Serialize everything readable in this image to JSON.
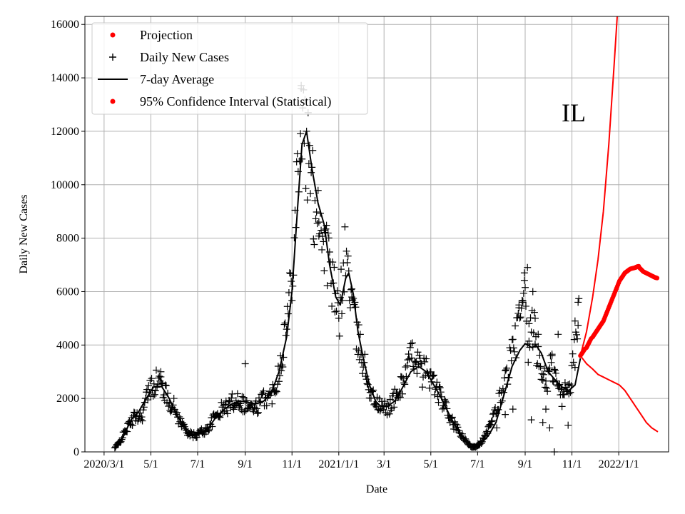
{
  "chart_data": {
    "type": "line",
    "xlabel": "Date",
    "ylabel": "Daily New Cases",
    "annotation": "IL",
    "ylim": [
      0,
      16300
    ],
    "xlim": [
      "2020-02-05",
      "2022-03-07"
    ],
    "x_ticks": [
      {
        "date": "2020-03-01",
        "label": "2020/3/1"
      },
      {
        "date": "2020-05-01",
        "label": "5/1"
      },
      {
        "date": "2020-07-01",
        "label": "7/1"
      },
      {
        "date": "2020-09-01",
        "label": "9/1"
      },
      {
        "date": "2020-11-01",
        "label": "11/1"
      },
      {
        "date": "2021-01-01",
        "label": "2021/1/1"
      },
      {
        "date": "2021-03-01",
        "label": "3/1"
      },
      {
        "date": "2021-05-01",
        "label": "5/1"
      },
      {
        "date": "2021-07-01",
        "label": "7/1"
      },
      {
        "date": "2021-09-01",
        "label": "9/1"
      },
      {
        "date": "2021-11-01",
        "label": "11/1"
      },
      {
        "date": "2022-01-01",
        "label": "2022/1/1"
      }
    ],
    "y_ticks": [
      0,
      2000,
      4000,
      6000,
      8000,
      10000,
      12000,
      14000,
      16000
    ],
    "grid": true,
    "legend_placement": "top-left",
    "legend": [
      {
        "label": "Projection",
        "marker": "dot",
        "color": "#ff0000"
      },
      {
        "label": "Daily New Cases",
        "marker": "plus",
        "color": "#000000"
      },
      {
        "label": "7-day Average",
        "marker": "line",
        "color": "#000000"
      },
      {
        "label": "95% Confidence Interval (Statistical)",
        "marker": "dot",
        "color": "#ff0000"
      }
    ],
    "series": [
      {
        "name": "7-day Average",
        "color": "#000000",
        "points": [
          [
            "2020-03-15",
            100
          ],
          [
            "2020-03-25",
            500
          ],
          [
            "2020-04-05",
            1200
          ],
          [
            "2020-04-15",
            1500
          ],
          [
            "2020-04-25",
            2000
          ],
          [
            "2020-05-05",
            2450
          ],
          [
            "2020-05-15",
            2450
          ],
          [
            "2020-05-25",
            2000
          ],
          [
            "2020-06-05",
            1300
          ],
          [
            "2020-06-15",
            900
          ],
          [
            "2020-06-25",
            650
          ],
          [
            "2020-07-05",
            700
          ],
          [
            "2020-07-15",
            900
          ],
          [
            "2020-07-25",
            1300
          ],
          [
            "2020-08-05",
            1600
          ],
          [
            "2020-08-15",
            1800
          ],
          [
            "2020-08-25",
            1900
          ],
          [
            "2020-09-05",
            1850
          ],
          [
            "2020-09-15",
            1800
          ],
          [
            "2020-09-25",
            1900
          ],
          [
            "2020-10-05",
            2200
          ],
          [
            "2020-10-15",
            3000
          ],
          [
            "2020-10-25",
            4300
          ],
          [
            "2020-11-01",
            6000
          ],
          [
            "2020-11-08",
            9000
          ],
          [
            "2020-11-14",
            11500
          ],
          [
            "2020-11-20",
            12000
          ],
          [
            "2020-11-27",
            10600
          ],
          [
            "2020-12-05",
            9300
          ],
          [
            "2020-12-13",
            8500
          ],
          [
            "2020-12-20",
            7000
          ],
          [
            "2020-12-28",
            5800
          ],
          [
            "2021-01-03",
            5500
          ],
          [
            "2021-01-10",
            6500
          ],
          [
            "2021-01-14",
            6700
          ],
          [
            "2021-01-20",
            5900
          ],
          [
            "2021-01-26",
            4500
          ],
          [
            "2021-02-02",
            3500
          ],
          [
            "2021-02-10",
            2500
          ],
          [
            "2021-02-18",
            1900
          ],
          [
            "2021-02-25",
            1700
          ],
          [
            "2021-03-05",
            1700
          ],
          [
            "2021-03-15",
            1900
          ],
          [
            "2021-03-25",
            2400
          ],
          [
            "2021-04-05",
            3000
          ],
          [
            "2021-04-15",
            3200
          ],
          [
            "2021-04-25",
            3000
          ],
          [
            "2021-05-05",
            2500
          ],
          [
            "2021-05-15",
            2000
          ],
          [
            "2021-05-25",
            1400
          ],
          [
            "2021-06-05",
            800
          ],
          [
            "2021-06-15",
            400
          ],
          [
            "2021-06-25",
            250
          ],
          [
            "2021-07-05",
            300
          ],
          [
            "2021-07-15",
            600
          ],
          [
            "2021-07-25",
            1100
          ],
          [
            "2021-08-05",
            2200
          ],
          [
            "2021-08-15",
            3200
          ],
          [
            "2021-08-25",
            3800
          ],
          [
            "2021-09-01",
            4050
          ],
          [
            "2021-09-10",
            3900
          ],
          [
            "2021-09-15",
            4000
          ],
          [
            "2021-09-22",
            3700
          ],
          [
            "2021-10-01",
            3000
          ],
          [
            "2021-10-10",
            2700
          ],
          [
            "2021-10-20",
            2400
          ],
          [
            "2021-10-28",
            2300
          ],
          [
            "2021-11-05",
            2500
          ],
          [
            "2021-11-12",
            3500
          ]
        ]
      },
      {
        "name": "Projection",
        "color": "#ff0000",
        "points": [
          [
            "2021-11-12",
            3600
          ],
          [
            "2021-11-20",
            3900
          ],
          [
            "2021-11-28",
            4300
          ],
          [
            "2021-12-05",
            4600
          ],
          [
            "2021-12-12",
            4900
          ],
          [
            "2021-12-19",
            5400
          ],
          [
            "2021-12-26",
            5900
          ],
          [
            "2022-01-02",
            6400
          ],
          [
            "2022-01-09",
            6700
          ],
          [
            "2022-01-16",
            6850
          ],
          [
            "2022-01-23",
            6900
          ],
          [
            "2022-01-27",
            6950
          ],
          [
            "2022-02-02",
            6750
          ],
          [
            "2022-02-09",
            6650
          ],
          [
            "2022-02-16",
            6550
          ],
          [
            "2022-02-21",
            6500
          ]
        ]
      },
      {
        "name": "95% Confidence Interval (Statistical)",
        "color": "#ff0000",
        "bound": "upper",
        "points": [
          [
            "2021-11-12",
            3600
          ],
          [
            "2021-11-20",
            4500
          ],
          [
            "2021-11-28",
            5800
          ],
          [
            "2021-12-05",
            7200
          ],
          [
            "2021-12-12",
            9000
          ],
          [
            "2021-12-19",
            11500
          ],
          [
            "2021-12-26",
            14500
          ],
          [
            "2021-12-30",
            16300
          ]
        ]
      },
      {
        "name": "95% Confidence Interval (Statistical)",
        "color": "#ff0000",
        "bound": "lower",
        "points": [
          [
            "2021-11-12",
            3600
          ],
          [
            "2021-11-20",
            3300
          ],
          [
            "2021-11-28",
            3100
          ],
          [
            "2021-12-05",
            2900
          ],
          [
            "2021-12-12",
            2800
          ],
          [
            "2021-12-19",
            2700
          ],
          [
            "2021-12-26",
            2600
          ],
          [
            "2022-01-02",
            2500
          ],
          [
            "2022-01-09",
            2300
          ],
          [
            "2022-01-16",
            2000
          ],
          [
            "2022-01-23",
            1700
          ],
          [
            "2022-01-30",
            1400
          ],
          [
            "2022-02-06",
            1100
          ],
          [
            "2022-02-13",
            900
          ],
          [
            "2022-02-21",
            750
          ]
        ]
      }
    ],
    "scatter_envelope": {
      "name": "Daily New Cases",
      "points": [
        [
          "2020-03-15",
          150
        ],
        [
          "2020-03-22",
          400
        ],
        [
          "2020-03-29",
          800
        ],
        [
          "2020-04-05",
          1100
        ],
        [
          "2020-04-12",
          1400
        ],
        [
          "2020-04-19",
          1300
        ],
        [
          "2020-04-26",
          2100
        ],
        [
          "2020-05-03",
          2500
        ],
        [
          "2020-05-10",
          2700
        ],
        [
          "2020-05-17",
          2400
        ],
        [
          "2020-05-24",
          1900
        ],
        [
          "2020-05-31",
          1700
        ],
        [
          "2020-06-07",
          1200
        ],
        [
          "2020-06-14",
          900
        ],
        [
          "2020-06-21",
          650
        ],
        [
          "2020-06-28",
          600
        ],
        [
          "2020-07-05",
          750
        ],
        [
          "2020-07-12",
          800
        ],
        [
          "2020-07-19",
          1100
        ],
        [
          "2020-07-26",
          1400
        ],
        [
          "2020-08-02",
          1600
        ],
        [
          "2020-08-09",
          1700
        ],
        [
          "2020-08-16",
          1900
        ],
        [
          "2020-08-23",
          2000
        ],
        [
          "2020-08-30",
          1800
        ],
        [
          "2020-09-06",
          1700
        ],
        [
          "2020-09-13",
          1600
        ],
        [
          "2020-09-20",
          1800
        ],
        [
          "2020-09-27",
          2100
        ],
        [
          "2020-10-04",
          2000
        ],
        [
          "2020-10-11",
          2600
        ],
        [
          "2020-10-18",
          3500
        ],
        [
          "2020-10-25",
          4800
        ],
        [
          "2020-11-01",
          6900
        ],
        [
          "2020-11-06",
          9500
        ],
        [
          "2020-11-10",
          11400
        ],
        [
          "2020-11-13",
          12700
        ],
        [
          "2020-11-17",
          11800
        ],
        [
          "2020-11-21",
          11000
        ],
        [
          "2020-11-25",
          10400
        ],
        [
          "2020-11-30",
          9200
        ],
        [
          "2020-12-04",
          9600
        ],
        [
          "2020-12-08",
          8700
        ],
        [
          "2020-12-12",
          8000
        ],
        [
          "2020-12-16",
          7600
        ],
        [
          "2020-12-20",
          6900
        ],
        [
          "2020-12-24",
          6200
        ],
        [
          "2020-12-28",
          5600
        ],
        [
          "2021-01-01",
          4800
        ],
        [
          "2021-01-05",
          6200
        ],
        [
          "2021-01-09",
          7300
        ],
        [
          "2021-01-13",
          6900
        ],
        [
          "2021-01-17",
          5800
        ],
        [
          "2021-01-21",
          5100
        ],
        [
          "2021-01-25",
          4200
        ],
        [
          "2021-01-29",
          3900
        ],
        [
          "2021-02-03",
          3300
        ],
        [
          "2021-02-08",
          2600
        ],
        [
          "2021-02-13",
          2100
        ],
        [
          "2021-02-18",
          1900
        ],
        [
          "2021-02-23",
          1700
        ],
        [
          "2021-02-28",
          1650
        ],
        [
          "2021-03-05",
          1600
        ],
        [
          "2021-03-10",
          1800
        ],
        [
          "2021-03-15",
          2000
        ],
        [
          "2021-03-20",
          2200
        ],
        [
          "2021-03-25",
          2600
        ],
        [
          "2021-03-30",
          3000
        ],
        [
          "2021-04-04",
          3400
        ],
        [
          "2021-04-09",
          3700
        ],
        [
          "2021-04-14",
          3400
        ],
        [
          "2021-04-19",
          2900
        ],
        [
          "2021-04-24",
          3100
        ],
        [
          "2021-04-29",
          2900
        ],
        [
          "2021-05-04",
          2600
        ],
        [
          "2021-05-09",
          2300
        ],
        [
          "2021-05-14",
          2000
        ],
        [
          "2021-05-19",
          1700
        ],
        [
          "2021-05-24",
          1400
        ],
        [
          "2021-05-29",
          1100
        ],
        [
          "2021-06-03",
          900
        ],
        [
          "2021-06-08",
          700
        ],
        [
          "2021-06-13",
          500
        ],
        [
          "2021-06-18",
          300
        ],
        [
          "2021-06-23",
          200
        ],
        [
          "2021-06-28",
          200
        ],
        [
          "2021-07-03",
          300
        ],
        [
          "2021-07-08",
          450
        ],
        [
          "2021-07-13",
          700
        ],
        [
          "2021-07-18",
          1000
        ],
        [
          "2021-07-23",
          1400
        ],
        [
          "2021-07-28",
          1800
        ],
        [
          "2021-08-02",
          2300
        ],
        [
          "2021-08-07",
          2800
        ],
        [
          "2021-08-12",
          3400
        ],
        [
          "2021-08-17",
          3800
        ],
        [
          "2021-08-22",
          4600
        ],
        [
          "2021-08-27",
          5200
        ],
        [
          "2021-09-01",
          5600
        ],
        [
          "2021-09-04",
          3600
        ],
        [
          "2021-09-08",
          4300
        ],
        [
          "2021-09-12",
          4700
        ],
        [
          "2021-09-16",
          3900
        ],
        [
          "2021-09-20",
          3100
        ],
        [
          "2021-09-25",
          2900
        ],
        [
          "2021-09-30",
          2600
        ],
        [
          "2021-10-05",
          3300
        ],
        [
          "2021-10-10",
          2800
        ],
        [
          "2021-10-15",
          2300
        ],
        [
          "2021-10-20",
          2200
        ],
        [
          "2021-10-25",
          2500
        ],
        [
          "2021-10-30",
          2600
        ],
        [
          "2021-11-03",
          3400
        ],
        [
          "2021-11-07",
          4300
        ],
        [
          "2021-11-10",
          5200
        ]
      ],
      "outliers": [
        [
          "2020-05-14",
          3000
        ],
        [
          "2020-09-01",
          3300
        ],
        [
          "2020-11-13",
          13600
        ],
        [
          "2020-12-13",
          8300
        ],
        [
          "2020-12-06",
          8600
        ],
        [
          "2021-01-18",
          6100
        ],
        [
          "2021-01-27",
          3800
        ],
        [
          "2021-08-31",
          6700
        ],
        [
          "2021-09-04",
          6900
        ],
        [
          "2021-09-11",
          6000
        ],
        [
          "2021-09-14",
          5000
        ],
        [
          "2021-09-18",
          4400
        ],
        [
          "2021-08-24",
          5500
        ],
        [
          "2021-08-29",
          5600
        ],
        [
          "2021-09-06",
          4800
        ],
        [
          "2021-10-06",
          3600
        ],
        [
          "2021-10-14",
          4400
        ],
        [
          "2021-11-05",
          4900
        ],
        [
          "2021-11-09",
          5600
        ],
        [
          "2021-09-09",
          1200
        ],
        [
          "2021-09-24",
          1100
        ],
        [
          "2021-10-03",
          900
        ],
        [
          "2021-10-27",
          1000
        ],
        [
          "2021-10-09",
          0
        ],
        [
          "2021-08-16",
          1600
        ],
        [
          "2021-08-06",
          1400
        ],
        [
          "2021-07-26",
          900
        ],
        [
          "2021-10-19",
          1700
        ],
        [
          "2021-09-28",
          1600
        ]
      ]
    }
  }
}
